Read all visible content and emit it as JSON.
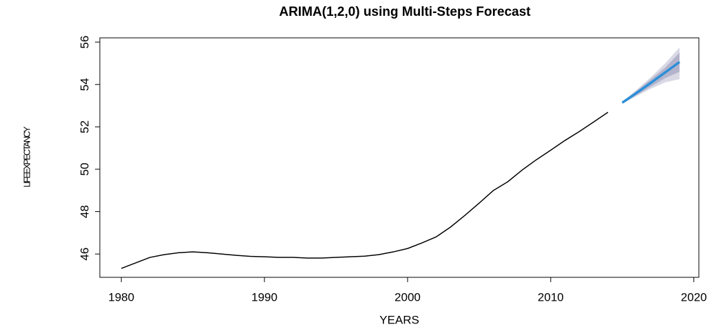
{
  "chart_data": {
    "type": "line",
    "title": "ARIMA(1,2,0) using Multi-Steps Forecast",
    "x_label": "YEARS",
    "y_label": "LIFEEXPECTANCY",
    "x": [
      1980,
      1981,
      1982,
      1983,
      1984,
      1985,
      1986,
      1987,
      1988,
      1989,
      1990,
      1991,
      1992,
      1993,
      1994,
      1995,
      1996,
      1997,
      1998,
      1999,
      2000,
      2001,
      2002,
      2003,
      2004,
      2005,
      2006,
      2007,
      2008,
      2009,
      2010,
      2011,
      2012,
      2013,
      2014,
      2015,
      2016,
      2017,
      2018,
      2019
    ],
    "series": [
      {
        "color": "#000000",
        "width": 1.5,
        "values": [
          45.32,
          45.58,
          45.84,
          45.97,
          46.06,
          46.1,
          46.06,
          46.0,
          45.94,
          45.89,
          45.87,
          45.84,
          45.84,
          45.81,
          45.81,
          45.84,
          45.87,
          45.9,
          45.97,
          46.1,
          46.26,
          46.52,
          46.81,
          47.27,
          47.82,
          48.4,
          49.0,
          49.41,
          49.96,
          50.45,
          50.9,
          51.36,
          51.78,
          52.23,
          52.69,
          null,
          null,
          null,
          null,
          null
        ]
      },
      {
        "color": "#2b8fd8",
        "width": 3.5,
        "values": [
          null,
          null,
          null,
          null,
          null,
          null,
          null,
          null,
          null,
          null,
          null,
          null,
          null,
          null,
          null,
          null,
          null,
          null,
          null,
          null,
          null,
          null,
          null,
          null,
          null,
          null,
          null,
          null,
          null,
          null,
          null,
          null,
          null,
          null,
          null,
          53.14,
          53.6,
          54.08,
          54.57,
          55.06
        ]
      }
    ],
    "intervals": [
      {
        "color": "#d9d9e6",
        "upper": [
          null,
          null,
          null,
          null,
          null,
          null,
          null,
          null,
          null,
          null,
          null,
          null,
          null,
          null,
          null,
          null,
          null,
          null,
          null,
          null,
          null,
          null,
          null,
          null,
          null,
          null,
          null,
          null,
          null,
          null,
          null,
          null,
          null,
          null,
          null,
          53.19,
          53.75,
          54.35,
          55.0,
          55.75
        ],
        "lower": [
          null,
          null,
          null,
          null,
          null,
          null,
          null,
          null,
          null,
          null,
          null,
          null,
          null,
          null,
          null,
          null,
          null,
          null,
          null,
          null,
          null,
          null,
          null,
          null,
          null,
          null,
          null,
          null,
          null,
          null,
          null,
          null,
          null,
          null,
          null,
          53.09,
          53.45,
          53.8,
          54.1,
          54.25
        ]
      },
      {
        "color": "#b3b3cc",
        "upper": [
          null,
          null,
          null,
          null,
          null,
          null,
          null,
          null,
          null,
          null,
          null,
          null,
          null,
          null,
          null,
          null,
          null,
          null,
          null,
          null,
          null,
          null,
          null,
          null,
          null,
          null,
          null,
          null,
          null,
          null,
          null,
          null,
          null,
          null,
          null,
          53.17,
          53.7,
          54.25,
          54.8,
          55.5
        ],
        "lower": [
          null,
          null,
          null,
          null,
          null,
          null,
          null,
          null,
          null,
          null,
          null,
          null,
          null,
          null,
          null,
          null,
          null,
          null,
          null,
          null,
          null,
          null,
          null,
          null,
          null,
          null,
          null,
          null,
          null,
          null,
          null,
          null,
          null,
          null,
          null,
          53.11,
          53.5,
          53.9,
          54.3,
          54.6
        ]
      }
    ],
    "xlim": [
      1978.5,
      2020.35
    ],
    "ylim": [
      44.9,
      56.2
    ],
    "xticks": [
      1980,
      1990,
      2000,
      2010,
      2020
    ],
    "yticks": [
      46,
      48,
      50,
      52,
      54,
      56
    ],
    "grid": false
  }
}
